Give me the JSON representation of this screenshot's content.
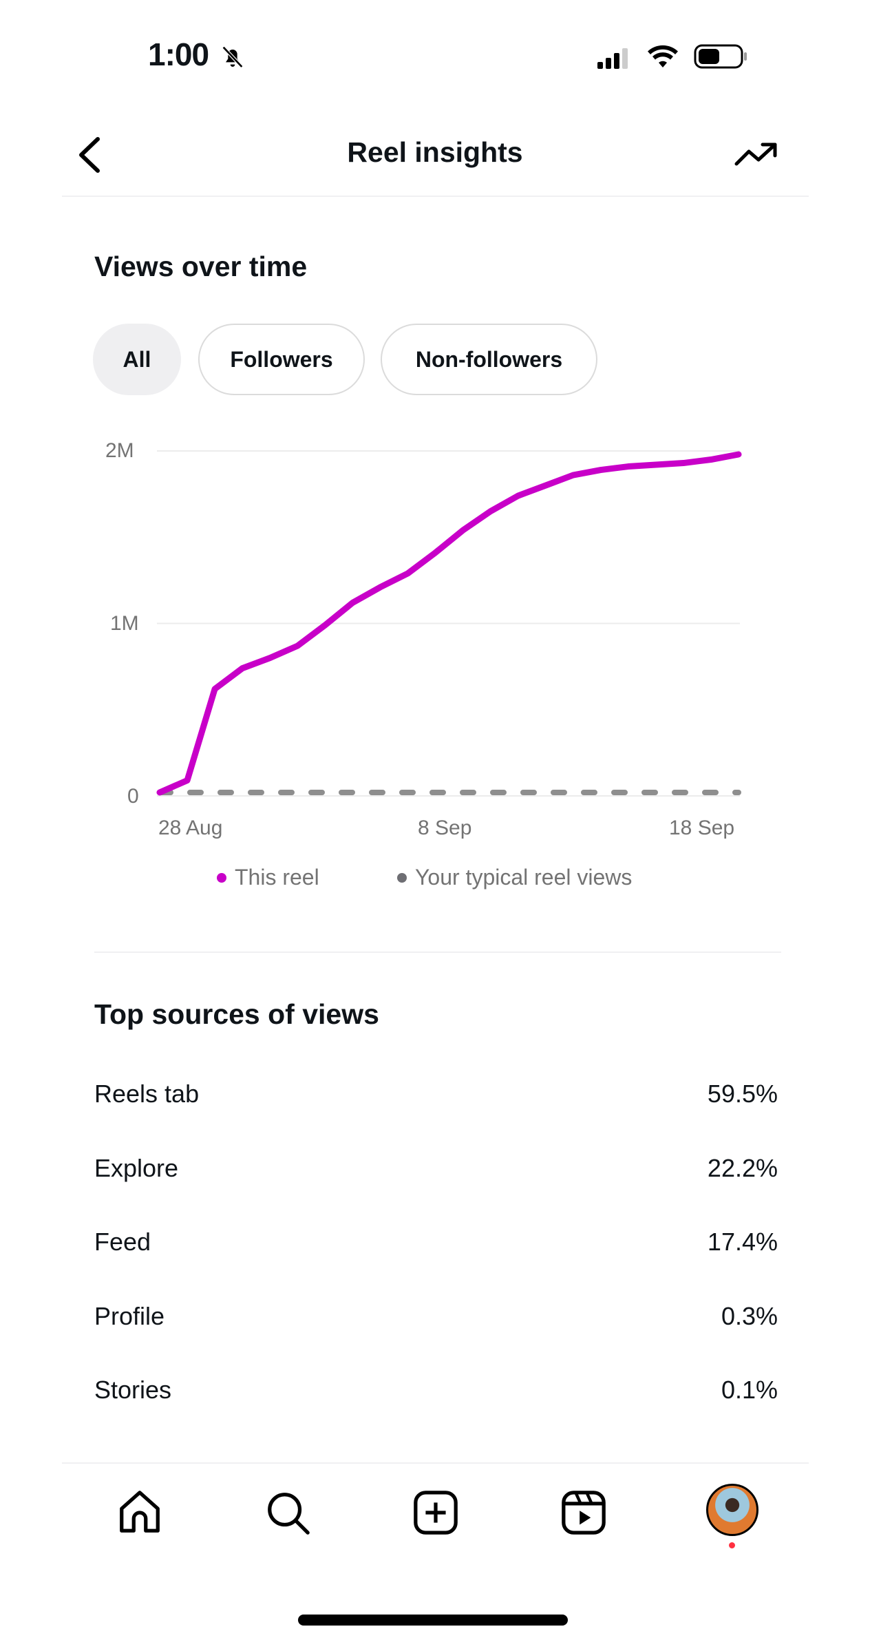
{
  "status_bar": {
    "time": "1:00",
    "icons": [
      "bell-slash-icon",
      "cellular-signal-icon",
      "wifi-icon",
      "battery-icon"
    ]
  },
  "header": {
    "title": "Reel insights",
    "back_icon": "chevron-left-icon",
    "trend_icon": "trending-up-icon"
  },
  "views_section": {
    "title": "Views over time",
    "filters": [
      {
        "label": "All",
        "active": true
      },
      {
        "label": "Followers",
        "active": false
      },
      {
        "label": "Non-followers",
        "active": false
      }
    ]
  },
  "chart_data": {
    "type": "line",
    "title": "Views over time",
    "x_tick_labels": [
      "28 Aug",
      "8 Sep",
      "18 Sep"
    ],
    "y_tick_labels": [
      "0",
      "1M",
      "2M"
    ],
    "ylim": [
      0,
      2000000
    ],
    "grid": true,
    "legend": "bottom",
    "x_days": [
      0,
      1,
      2,
      3,
      4,
      5,
      6,
      7,
      8,
      9,
      10,
      11,
      12,
      13,
      14,
      15,
      16,
      17,
      18,
      19,
      20,
      21
    ],
    "series": [
      {
        "name": "This reel",
        "color": "#c800c8",
        "style": "solid",
        "values": [
          20000,
          90000,
          620000,
          740000,
          800000,
          870000,
          990000,
          1120000,
          1210000,
          1290000,
          1410000,
          1540000,
          1650000,
          1740000,
          1800000,
          1860000,
          1890000,
          1910000,
          1920000,
          1930000,
          1950000,
          1980000
        ]
      },
      {
        "name": "Your typical reel views",
        "color": "#8e8e8e",
        "style": "dashed",
        "values": [
          20000,
          20000,
          20000,
          20000,
          20000,
          20000,
          20000,
          20000,
          20000,
          20000,
          20000,
          20000,
          20000,
          20000,
          20000,
          20000,
          20000,
          20000,
          20000,
          20000,
          20000,
          20000
        ]
      }
    ]
  },
  "sources_section": {
    "title": "Top sources of views",
    "rows": [
      {
        "label": "Reels tab",
        "value": "59.5%"
      },
      {
        "label": "Explore",
        "value": "22.2%"
      },
      {
        "label": "Feed",
        "value": "17.4%"
      },
      {
        "label": "Profile",
        "value": "0.3%"
      },
      {
        "label": "Stories",
        "value": "0.1%"
      }
    ]
  },
  "bottom_nav": {
    "items": [
      "home-icon",
      "search-icon",
      "create-icon",
      "reels-icon",
      "profile-avatar"
    ],
    "notification_color": "#ff3040"
  }
}
